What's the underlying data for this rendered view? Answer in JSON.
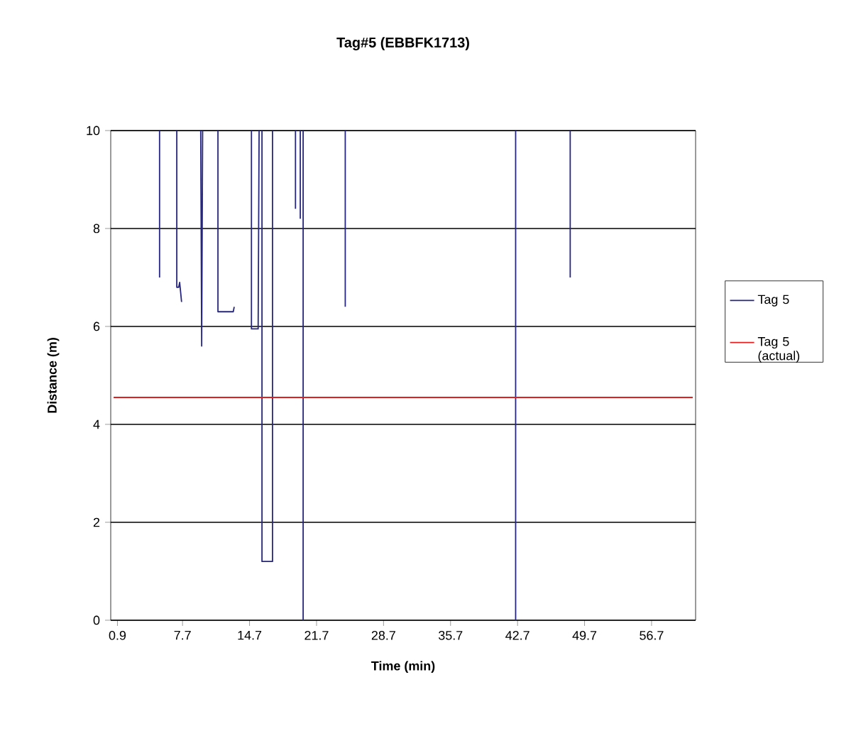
{
  "chart_data": {
    "type": "line",
    "title": "Tag#5 (EBBFK1713)",
    "xlabel": "Time (min)",
    "ylabel": "Distance (m)",
    "xlim": [
      0.2,
      61.3
    ],
    "ylim": [
      0,
      10
    ],
    "xticks": [
      0.9,
      7.7,
      14.7,
      21.7,
      28.7,
      35.7,
      42.7,
      49.7,
      56.7
    ],
    "yticks": [
      0,
      2,
      4,
      6,
      8,
      10
    ],
    "grid": "y",
    "legend": "right",
    "marker": "none",
    "line_style": "solid",
    "series": [
      {
        "name": "Tag 5",
        "color": "#262680",
        "x": [
          5.3,
          5.3,
          null,
          7.1,
          7.1,
          7.3,
          7.4,
          7.5,
          7.6,
          null,
          9.6,
          9.7,
          9.8,
          null,
          11.4,
          11.4,
          13.0,
          13.1,
          null,
          14.9,
          14.9,
          15.6,
          15.7,
          null,
          16.0,
          16.0,
          17.1,
          17.1,
          null,
          19.5,
          19.5,
          null,
          20.0,
          20.0,
          null,
          20.3,
          20.3,
          null,
          24.7,
          24.7,
          null,
          42.5,
          42.5,
          null,
          48.2,
          48.2
        ],
        "values": [
          10,
          7.0,
          null,
          10,
          6.8,
          6.8,
          6.9,
          6.7,
          6.5,
          null,
          10,
          5.6,
          10,
          null,
          10,
          6.3,
          6.3,
          6.4,
          null,
          10,
          5.95,
          5.95,
          10,
          null,
          10,
          1.2,
          1.2,
          10,
          null,
          10,
          8.4,
          null,
          10,
          8.2,
          null,
          10,
          0,
          null,
          10,
          6.4,
          null,
          10,
          0,
          null,
          10,
          7.0
        ]
      },
      {
        "name": "Tag 5 (actual)",
        "color": "#e02020",
        "x": [
          0.5,
          61.0
        ],
        "values": [
          4.55,
          4.55
        ]
      }
    ]
  }
}
